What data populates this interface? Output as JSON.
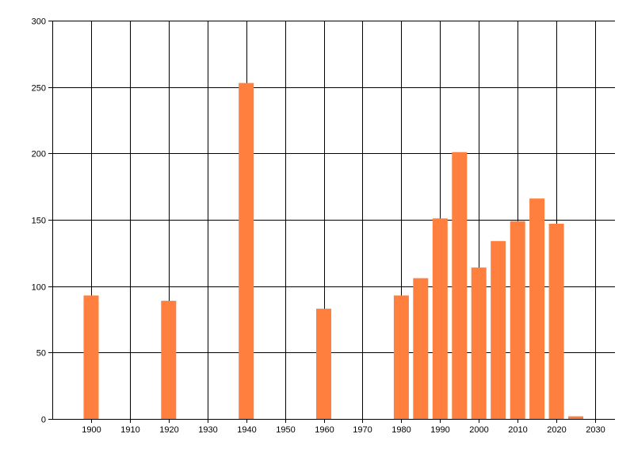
{
  "chart_data": {
    "type": "bar",
    "title": "",
    "xlabel": "",
    "ylabel": "",
    "x": [
      1900,
      1920,
      1940,
      1960,
      1980,
      1985,
      1990,
      1995,
      2000,
      2005,
      2010,
      2015,
      2020,
      2025
    ],
    "values": [
      93,
      89,
      253,
      83,
      93,
      106,
      151,
      201,
      114,
      134,
      149,
      166,
      147,
      2
    ],
    "xlim": [
      1890,
      2035
    ],
    "ylim": [
      0,
      300
    ],
    "x_ticks": [
      "1900",
      "1910",
      "1920",
      "1930",
      "1940",
      "1950",
      "1960",
      "1970",
      "1980",
      "1990",
      "2000",
      "2010",
      "2020",
      "2030"
    ],
    "y_ticks": [
      "0",
      "50",
      "100",
      "150",
      "200",
      "250",
      "300"
    ],
    "grid": true,
    "bar_color": "#FF7F3F"
  }
}
